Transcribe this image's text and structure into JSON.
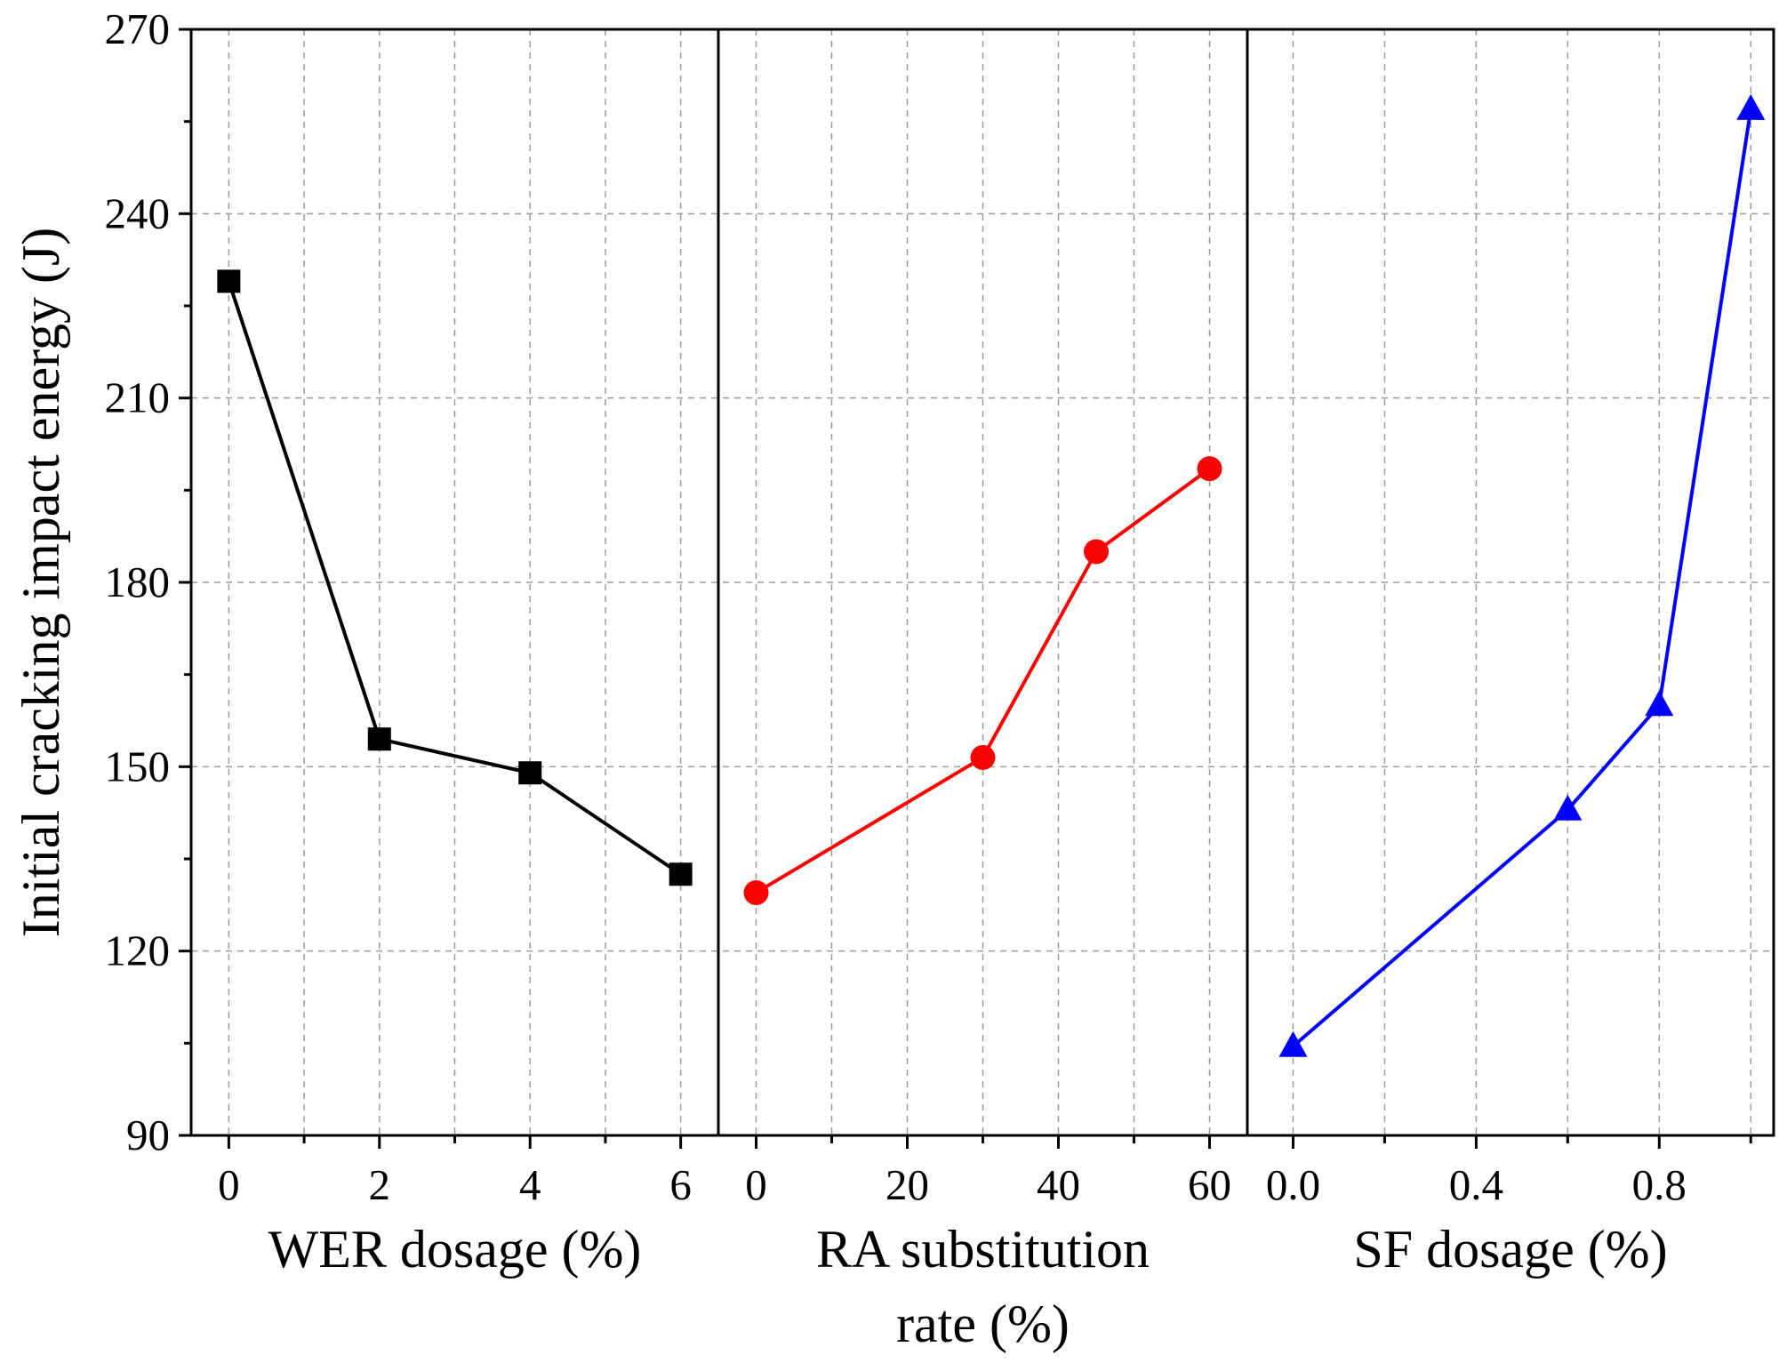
{
  "chart_data": {
    "type": "line",
    "ylabel": "Initial cracking impact energy (J)",
    "ylim": [
      90,
      270
    ],
    "yticks": [
      90,
      120,
      150,
      180,
      210,
      240,
      270
    ],
    "grid": true,
    "panels": [
      {
        "xlabel_lines": [
          "WER dosage (%)"
        ],
        "xlim": [
          -0.5,
          6.5
        ],
        "xticks": [
          0,
          2,
          4,
          6
        ],
        "xtick_labels": [
          "0",
          "2",
          "4",
          "6"
        ],
        "minor_xticks": [
          1,
          3,
          5
        ],
        "series": {
          "name": "WER",
          "color": "#000000",
          "marker": "square",
          "x": [
            0,
            2,
            4,
            6
          ],
          "y": [
            229,
            154.5,
            149,
            132.5
          ]
        }
      },
      {
        "xlabel_lines": [
          "RA substitution",
          "rate (%)"
        ],
        "xlim": [
          -5,
          65
        ],
        "xticks": [
          0,
          20,
          40,
          60
        ],
        "xtick_labels": [
          "0",
          "20",
          "40",
          "60"
        ],
        "minor_xticks": [
          10,
          30,
          50
        ],
        "series": {
          "name": "RA",
          "color": "#ff0000",
          "marker": "circle",
          "x": [
            0,
            30,
            45,
            60
          ],
          "y": [
            129.5,
            151.5,
            185,
            198.5
          ]
        }
      },
      {
        "xlabel_lines": [
          "SF dosage (%)"
        ],
        "xlim": [
          -0.1,
          1.05
        ],
        "xticks": [
          0,
          0.4,
          0.8
        ],
        "xtick_labels": [
          "0.0",
          "0.4",
          "0.8"
        ],
        "minor_xticks": [
          0.2,
          0.6,
          1.0
        ],
        "series": {
          "name": "SF",
          "color": "#0000ff",
          "marker": "triangle",
          "x": [
            0,
            0.6,
            0.8,
            1.0
          ],
          "y": [
            104.5,
            143,
            160,
            257
          ]
        }
      }
    ]
  }
}
